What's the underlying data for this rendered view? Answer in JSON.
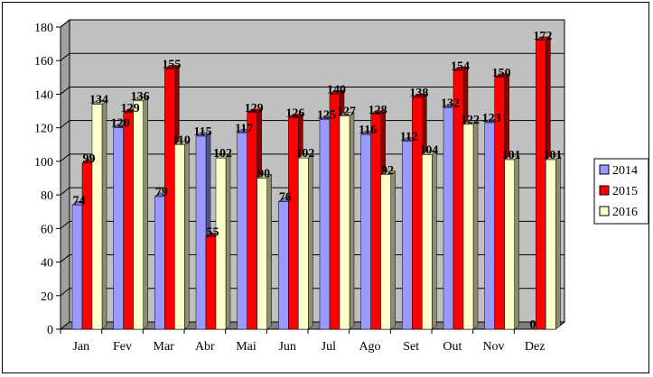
{
  "chart_data": {
    "type": "bar",
    "categories": [
      "Jan",
      "Fev",
      "Mar",
      "Abr",
      "Mai",
      "Jun",
      "Jul",
      "Ago",
      "Set",
      "Out",
      "Nov",
      "Dez"
    ],
    "series": [
      {
        "name": "2014",
        "color": "#9999FF",
        "values": [
          74,
          120,
          79,
          115,
          117,
          76,
          125,
          116,
          112,
          132,
          123,
          0
        ]
      },
      {
        "name": "2015",
        "color": "#FF0000",
        "values": [
          99,
          129,
          155,
          55,
          129,
          126,
          140,
          128,
          138,
          154,
          150,
          172
        ]
      },
      {
        "name": "2016",
        "color": "#FFFFCC",
        "values": [
          134,
          136,
          110,
          102,
          90,
          102,
          127,
          92,
          104,
          122,
          101,
          101
        ]
      }
    ],
    "yticks": [
      0,
      20,
      40,
      60,
      80,
      100,
      120,
      140,
      160,
      180
    ],
    "ylim": [
      0,
      180
    ],
    "grid": true,
    "legend": "right",
    "wall_color": "#C0C0C0",
    "floor_color": "#808080"
  }
}
